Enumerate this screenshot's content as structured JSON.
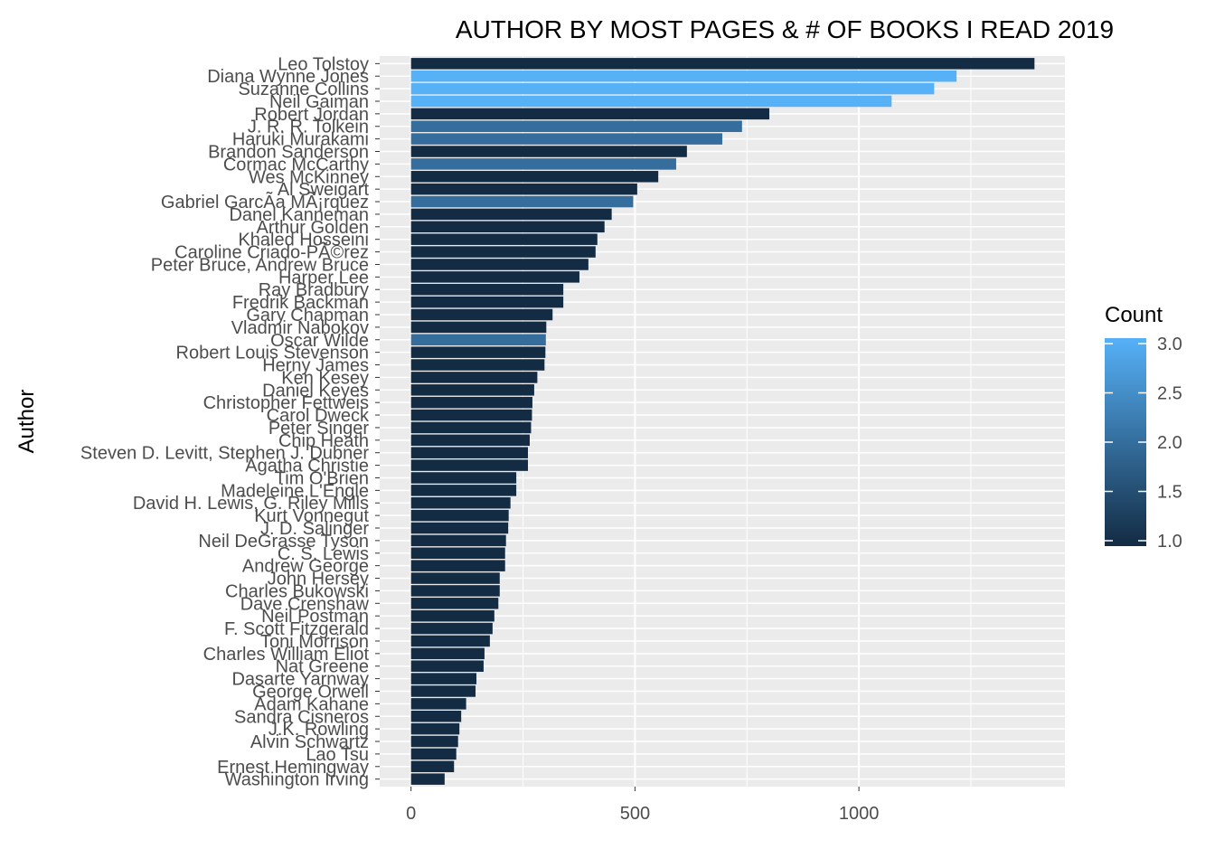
{
  "chart_data": {
    "type": "bar",
    "orientation": "horizontal",
    "title": "AUTHOR BY MOST PAGES & # OF BOOKS I READ 2019",
    "xlabel": "",
    "ylabel": "Author",
    "xlim": [
      -70,
      1460
    ],
    "xticks": [
      0,
      500,
      1000
    ],
    "xtick_labels": [
      "0",
      "500",
      "1000"
    ],
    "grid": true,
    "legend": {
      "title": "Count",
      "position": "right",
      "type": "colorbar",
      "range": [
        1.0,
        3.0
      ],
      "ticks": [
        1.0,
        1.5,
        2.0,
        2.5,
        3.0
      ],
      "tick_labels": [
        "1.0",
        "1.5",
        "2.0",
        "2.5",
        "3.0"
      ],
      "low_color": "#132B43",
      "high_color": "#56B1F7"
    },
    "categories": [
      "Leo Tolstoy",
      "Diana Wynne Jones",
      "Suzanne Collins",
      "Neil Gaiman",
      "Robert Jordan",
      "J. R. R. Tolkein",
      "Haruki Murakami",
      "Brandon Sanderson",
      "Cormac McCarthy",
      "Wes McKinney",
      "Al Sweigart",
      "Gabriel GarcÃ­a MÃ¡rquez",
      "Danel Kanneman",
      "Arthur Golden",
      "Khaled Hosseini",
      "Caroline Criado-PÃ©rez",
      "Peter Bruce, Andrew Bruce",
      "Harper Lee",
      "Ray Bradbury",
      "Fredrik Backman",
      "Gary Chapman",
      "Vladmir Nabokov",
      "Oscar Wilde",
      "Robert Louis Stevenson",
      "Herny James",
      "Ken Kesey",
      "Daniel Keyes",
      "Christopher Fettweis",
      "Carol Dweck",
      "Peter Singer",
      "Chip Heath",
      "Steven D. Levitt, Stephen J. Dubner",
      "Agatha Christie",
      "Tim O'Brien",
      "Madeleine L'Engle",
      "David H. Lewis, G. Riley Mills",
      "Kurt Vonnegut",
      "J. D. Salinger",
      "Neil DeGrasse Tyson",
      "C. S. Lewis",
      "Andrew George",
      "John Hersey",
      "Charles Bukowski",
      "Dave Crenshaw",
      "Neil Postman",
      "F. Scott Fitzgerald",
      "Toni Morrison",
      "Charles William Eliot",
      "Nat Greene",
      "Dasarte Yarnway",
      "George Orwell",
      "Adam Kahane",
      "Sandra Cisneros",
      "J.K. Rowling",
      "Alvin Schwartz",
      "Lao Tsu",
      "Ernest Hemingway",
      "Washington Irving"
    ],
    "values": [
      1392,
      1218,
      1168,
      1073,
      800,
      739,
      695,
      616,
      592,
      552,
      505,
      496,
      448,
      432,
      416,
      412,
      396,
      376,
      340,
      340,
      316,
      302,
      301,
      300,
      298,
      282,
      275,
      271,
      270,
      268,
      265,
      261,
      261,
      235,
      235,
      222,
      218,
      217,
      212,
      210,
      210,
      198,
      198,
      195,
      186,
      182,
      176,
      164,
      162,
      146,
      144,
      123,
      112,
      108,
      105,
      101,
      96,
      75
    ],
    "counts": [
      1,
      3,
      3,
      3,
      1,
      2,
      2,
      1,
      2,
      1,
      1,
      2,
      1,
      1,
      1,
      1,
      1,
      1,
      1,
      1,
      1,
      1,
      2,
      1,
      1,
      1,
      1,
      1,
      1,
      1,
      1,
      1,
      1,
      1,
      1,
      1,
      1,
      1,
      1,
      1,
      1,
      1,
      1,
      1,
      1,
      1,
      1,
      1,
      1,
      1,
      1,
      1,
      1,
      1,
      1,
      1,
      1,
      1
    ]
  }
}
